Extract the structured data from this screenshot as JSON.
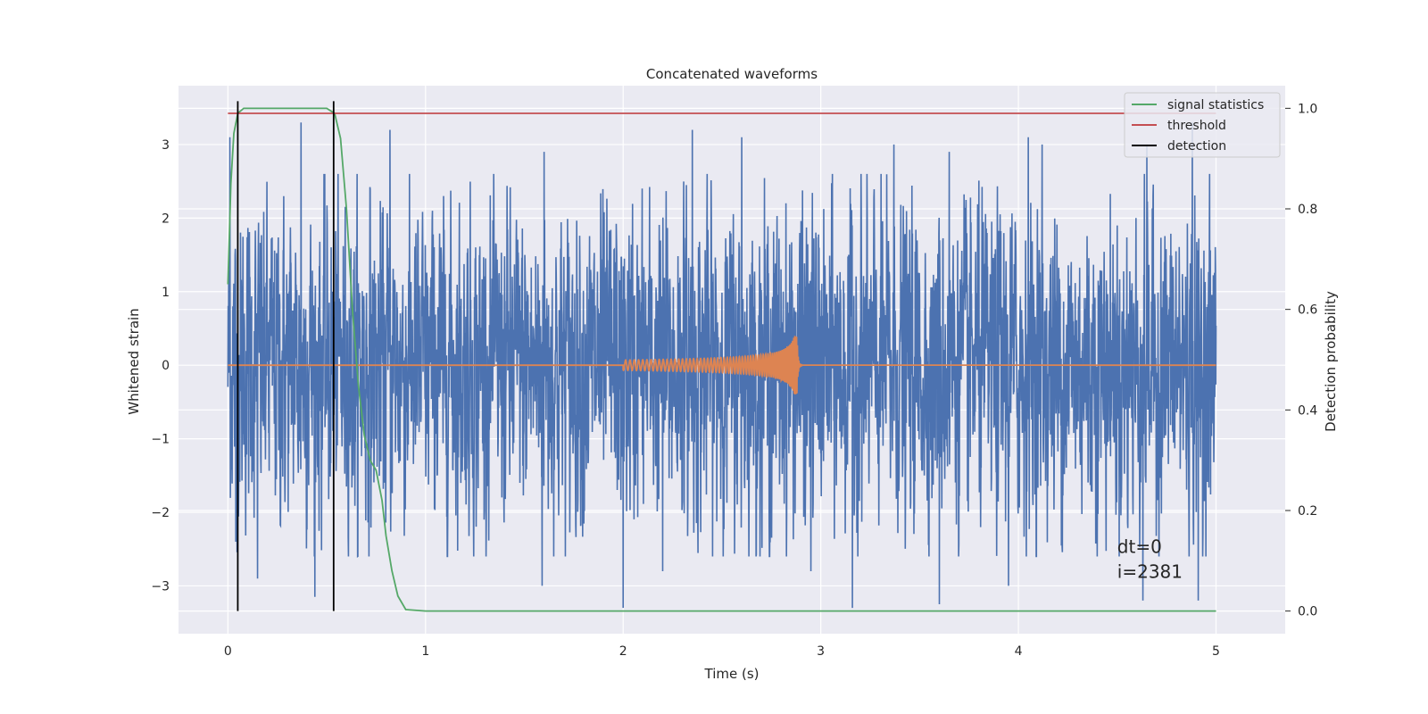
{
  "chart_data": {
    "type": "line",
    "title": "Concatenated waveforms",
    "xlabel": "Time (s)",
    "ylabel": "Whitened strain",
    "y2label": "Detection probability",
    "xlim": [
      -0.25,
      5.35
    ],
    "ylim": [
      -3.65,
      3.8
    ],
    "y2lim": [
      -0.045,
      1.045
    ],
    "x_ticks": [
      0,
      1,
      2,
      3,
      4,
      5
    ],
    "y_ticks": [
      -3,
      -2,
      -1,
      0,
      1,
      2,
      3
    ],
    "y2_ticks": [
      0.0,
      0.2,
      0.4,
      0.6,
      0.8,
      1.0
    ],
    "x_tick_labels": [
      "0",
      "1",
      "2",
      "3",
      "4",
      "5"
    ],
    "y_tick_labels": [
      "−3",
      "−2",
      "−1",
      "0",
      "1",
      "2",
      "3"
    ],
    "y2_tick_labels": [
      "0.0",
      "0.2",
      "0.4",
      "0.6",
      "0.8",
      "1.0"
    ],
    "grid": true,
    "legend_position": "top-right",
    "series": [
      {
        "name": "strain",
        "axis": "left",
        "color": "#4c72b0",
        "kind": "noise",
        "x_range": [
          0,
          5
        ],
        "typical_amplitude": 1.0,
        "max_peaks": [
          {
            "x": 0.01,
            "y": 3.1
          },
          {
            "x": 0.37,
            "y": 3.3
          },
          {
            "x": 0.82,
            "y": 3.2
          },
          {
            "x": 1.6,
            "y": 2.9
          },
          {
            "x": 2.35,
            "y": 3.2
          },
          {
            "x": 2.6,
            "y": 3.1
          },
          {
            "x": 3.37,
            "y": 3.0
          },
          {
            "x": 3.65,
            "y": 2.9
          },
          {
            "x": 4.05,
            "y": 3.1
          },
          {
            "x": 4.12,
            "y": 3.0
          },
          {
            "x": 4.65,
            "y": 3.0
          },
          {
            "x": 4.88,
            "y": 3.3
          }
        ],
        "min_peaks": [
          {
            "x": 0.04,
            "y": -2.4
          },
          {
            "x": 0.15,
            "y": -2.9
          },
          {
            "x": 0.44,
            "y": -3.15
          },
          {
            "x": 1.59,
            "y": -3.0
          },
          {
            "x": 2.0,
            "y": -3.3
          },
          {
            "x": 2.2,
            "y": -2.8
          },
          {
            "x": 2.95,
            "y": -2.8
          },
          {
            "x": 3.16,
            "y": -3.3
          },
          {
            "x": 3.6,
            "y": -3.25
          },
          {
            "x": 3.95,
            "y": -3.0
          },
          {
            "x": 4.63,
            "y": -3.2
          },
          {
            "x": 4.91,
            "y": -3.2
          }
        ]
      },
      {
        "name": "injected signal",
        "axis": "left",
        "color": "#dd8452",
        "kind": "chirp",
        "flat_y": 0,
        "chirp_start": 2.0,
        "chirp_end": 2.88,
        "start_amplitude": 0.07,
        "peak_amplitude": 0.4
      },
      {
        "name": "signal statistics",
        "axis": "right",
        "color": "#55a868",
        "points": [
          [
            0.0,
            0.65
          ],
          [
            0.015,
            0.85
          ],
          [
            0.03,
            0.95
          ],
          [
            0.05,
            0.99
          ],
          [
            0.08,
            1.0
          ],
          [
            0.5,
            1.0
          ],
          [
            0.54,
            0.99
          ],
          [
            0.57,
            0.94
          ],
          [
            0.6,
            0.8
          ],
          [
            0.63,
            0.6
          ],
          [
            0.66,
            0.45
          ],
          [
            0.69,
            0.35
          ],
          [
            0.72,
            0.3
          ],
          [
            0.75,
            0.28
          ],
          [
            0.78,
            0.22
          ],
          [
            0.8,
            0.15
          ],
          [
            0.83,
            0.08
          ],
          [
            0.86,
            0.03
          ],
          [
            0.9,
            0.003
          ],
          [
            1.0,
            0.0
          ],
          [
            5.0,
            0.0
          ]
        ]
      },
      {
        "name": "threshold",
        "axis": "right",
        "color": "#c44e52",
        "points": [
          [
            0,
            0.99
          ],
          [
            5,
            0.99
          ]
        ]
      },
      {
        "name": "detection",
        "axis": "right",
        "color": "#000000",
        "vlines": [
          0.05,
          0.535
        ],
        "vline_range": [
          0.0,
          1.0
        ]
      }
    ],
    "legend_entries": [
      {
        "label": "signal statistics",
        "color": "#55a868"
      },
      {
        "label": "threshold",
        "color": "#c44e52"
      },
      {
        "label": "detection",
        "color": "#000000"
      }
    ],
    "annotations": [
      "dt=0",
      "i=2381"
    ],
    "annotation_position": {
      "x": 4.5,
      "y": -2.55
    }
  }
}
